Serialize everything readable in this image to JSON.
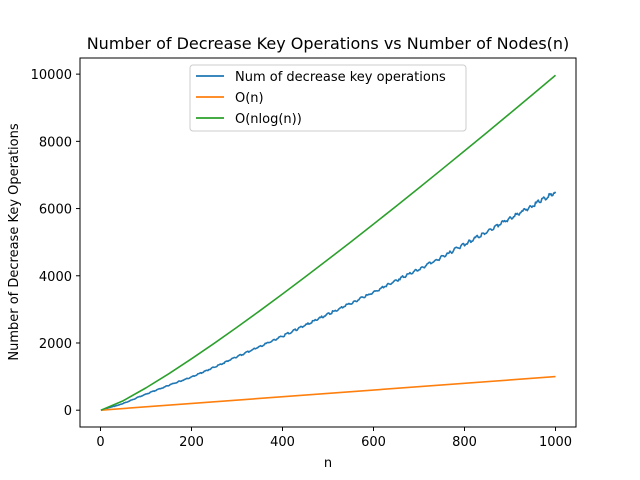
{
  "chart_data": {
    "type": "line",
    "title": "Number of Decrease Key Operations vs Number of Nodes(n)",
    "xlabel": "n",
    "ylabel": "Number of Decrease Key Operations",
    "xlim": [
      -45,
      1045
    ],
    "ylim": [
      -500,
      10480
    ],
    "xticks": [
      0,
      200,
      400,
      600,
      800,
      1000
    ],
    "yticks": [
      0,
      2000,
      4000,
      6000,
      8000,
      10000
    ],
    "xtick_labels": [
      "0",
      "200",
      "400",
      "600",
      "800",
      "1000"
    ],
    "ytick_labels": [
      "0",
      "2000",
      "4000",
      "6000",
      "8000",
      "10000"
    ],
    "grid": false,
    "legend_position": "top-center",
    "series": [
      {
        "name": "Num of decrease key operations",
        "color": "#1f77b4",
        "x": [
          1,
          50,
          100,
          150,
          200,
          250,
          300,
          350,
          400,
          450,
          500,
          550,
          600,
          650,
          700,
          750,
          800,
          850,
          900,
          950,
          1000
        ],
        "y": [
          0,
          200,
          480,
          740,
          990,
          1280,
          1590,
          1890,
          2200,
          2530,
          2860,
          3180,
          3510,
          3860,
          4200,
          4550,
          4940,
          5320,
          5700,
          6090,
          6500
        ]
      },
      {
        "name": "O(n)",
        "color": "#ff7f0e",
        "x": [
          1,
          1000
        ],
        "y": [
          1,
          1000
        ]
      },
      {
        "name": "O(nlog(n))",
        "color": "#2ca02c",
        "x": [
          1,
          50,
          100,
          150,
          200,
          250,
          300,
          350,
          400,
          450,
          500,
          550,
          600,
          650,
          700,
          750,
          800,
          850,
          900,
          950,
          1000
        ],
        "y": [
          0,
          282,
          664,
          1084,
          1529,
          1991,
          2469,
          2958,
          3458,
          3966,
          4483,
          5006,
          5537,
          6073,
          6616,
          7164,
          7715,
          8272,
          8832,
          9398,
          9966
        ]
      }
    ]
  }
}
